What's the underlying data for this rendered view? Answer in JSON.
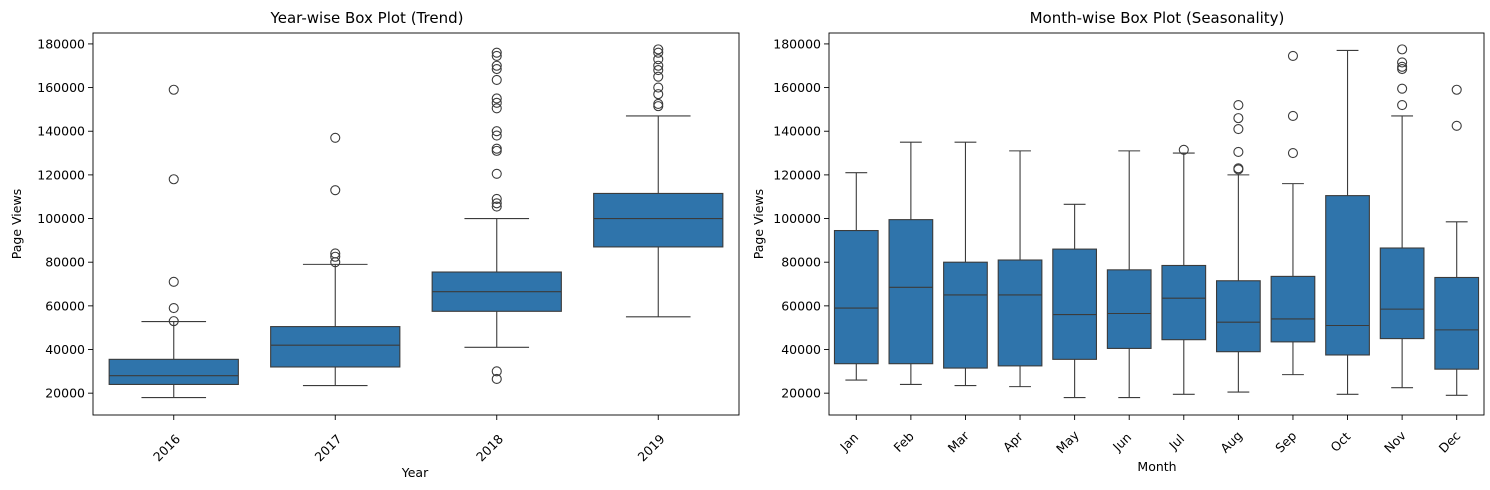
{
  "chart_data": [
    {
      "type": "box",
      "title": "Year-wise Box Plot (Trend)",
      "xlabel": "Year",
      "ylabel": "Page Views",
      "ylim": [
        10000,
        185000
      ],
      "yticks": [
        20000,
        40000,
        60000,
        80000,
        100000,
        120000,
        140000,
        160000,
        180000
      ],
      "color": "#2f74ab",
      "categories": [
        "2016",
        "2017",
        "2018",
        "2019"
      ],
      "boxes": [
        {
          "whislo": 18000,
          "q1": 24000,
          "med": 28000,
          "q3": 35500,
          "whishi": 52800,
          "fliers": [
            53000,
            59000,
            71000,
            118000,
            159000
          ]
        },
        {
          "whislo": 23500,
          "q1": 32000,
          "med": 42000,
          "q3": 50500,
          "whishi": 79000,
          "fliers": [
            80000,
            82500,
            84000,
            113000,
            137000
          ]
        },
        {
          "whislo": 41000,
          "q1": 57500,
          "med": 66500,
          "q3": 75500,
          "whishi": 100000,
          "fliers": [
            26500,
            30000,
            105500,
            107000,
            109000,
            120500,
            131000,
            132000,
            138000,
            140000,
            150500,
            153000,
            155000,
            163500,
            168500,
            170000,
            174500,
            176000
          ]
        },
        {
          "whislo": 55000,
          "q1": 87000,
          "med": 100000,
          "q3": 111500,
          "whishi": 147000,
          "fliers": [
            151500,
            152500,
            157000,
            160000,
            165000,
            168000,
            170000,
            173000,
            176000,
            177500
          ]
        }
      ]
    },
    {
      "type": "box",
      "title": "Month-wise Box Plot (Seasonality)",
      "xlabel": "Month",
      "ylabel": "Page Views",
      "ylim": [
        10000,
        185000
      ],
      "yticks": [
        20000,
        40000,
        60000,
        80000,
        100000,
        120000,
        140000,
        160000,
        180000
      ],
      "color": "#2f74ab",
      "categories": [
        "Jan",
        "Feb",
        "Mar",
        "Apr",
        "May",
        "Jun",
        "Jul",
        "Aug",
        "Sep",
        "Oct",
        "Nov",
        "Dec"
      ],
      "boxes": [
        {
          "whislo": 26000,
          "q1": 33500,
          "med": 59000,
          "q3": 94500,
          "whishi": 121000,
          "fliers": []
        },
        {
          "whislo": 24000,
          "q1": 33500,
          "med": 68500,
          "q3": 99500,
          "whishi": 135000,
          "fliers": []
        },
        {
          "whislo": 23500,
          "q1": 31500,
          "med": 65000,
          "q3": 80000,
          "whishi": 135000,
          "fliers": []
        },
        {
          "whislo": 23000,
          "q1": 32500,
          "med": 65000,
          "q3": 81000,
          "whishi": 131000,
          "fliers": []
        },
        {
          "whislo": 18000,
          "q1": 35500,
          "med": 56000,
          "q3": 86000,
          "whishi": 106500,
          "fliers": []
        },
        {
          "whislo": 18000,
          "q1": 40500,
          "med": 56500,
          "q3": 76500,
          "whishi": 131000,
          "fliers": []
        },
        {
          "whislo": 19500,
          "q1": 44500,
          "med": 63500,
          "q3": 78500,
          "whishi": 130000,
          "fliers": [
            131500
          ]
        },
        {
          "whislo": 20500,
          "q1": 39000,
          "med": 52500,
          "q3": 71500,
          "whishi": 120000,
          "fliers": [
            122500,
            123000,
            130500,
            141000,
            146000,
            152000
          ]
        },
        {
          "whislo": 28500,
          "q1": 43500,
          "med": 54000,
          "q3": 73500,
          "whishi": 116000,
          "fliers": [
            130000,
            147000,
            174500
          ]
        },
        {
          "whislo": 19500,
          "q1": 37500,
          "med": 51000,
          "q3": 110500,
          "whishi": 177000,
          "fliers": []
        },
        {
          "whislo": 22500,
          "q1": 45000,
          "med": 58500,
          "q3": 86500,
          "whishi": 147000,
          "fliers": [
            152000,
            159500,
            168500,
            169500,
            171500,
            177500
          ]
        },
        {
          "whislo": 19000,
          "q1": 31000,
          "med": 49000,
          "q3": 73000,
          "whishi": 98500,
          "fliers": [
            142500,
            159000
          ]
        }
      ]
    }
  ]
}
